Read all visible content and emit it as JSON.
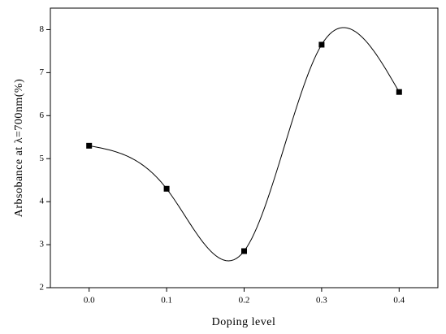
{
  "chart_data": {
    "type": "line",
    "smooth": true,
    "marker": "square",
    "color": "#000000",
    "x_label": "Doping level",
    "y_label": "Arbsobance at λ=700nm(%)",
    "x": [
      0.0,
      0.1,
      0.2,
      0.3,
      0.4
    ],
    "values": [
      5.3,
      4.3,
      2.85,
      7.65,
      6.55
    ],
    "xlim": [
      -0.05,
      0.45
    ],
    "ylim": [
      2,
      8.5
    ],
    "xticks": [
      {
        "value": 0,
        "label": "0.0"
      },
      {
        "value": 0.1,
        "label": "0.1"
      },
      {
        "value": 0.2,
        "label": "0.2"
      },
      {
        "value": 0.3,
        "label": "0.3"
      },
      {
        "value": 0.4,
        "label": "0.4"
      }
    ],
    "yticks": [
      2,
      3,
      4,
      5,
      6,
      7,
      8
    ]
  }
}
